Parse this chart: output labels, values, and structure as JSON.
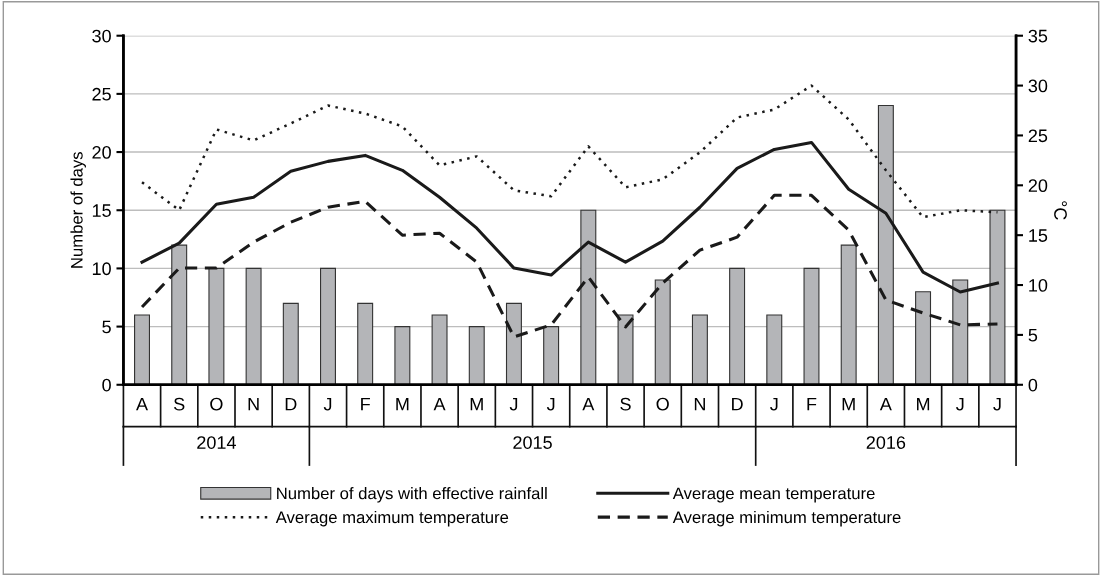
{
  "chart_data": {
    "type": "bar",
    "categories": [
      "A",
      "S",
      "O",
      "N",
      "D",
      "J",
      "F",
      "M",
      "A",
      "M",
      "J",
      "J",
      "A",
      "S",
      "O",
      "N",
      "D",
      "J",
      "F",
      "M",
      "A",
      "M",
      "J",
      "J"
    ],
    "ylabel": "Number of days",
    "y2label": "°C",
    "ylim": [
      0,
      30
    ],
    "yticks": [
      0,
      5,
      10,
      15,
      20,
      25,
      30
    ],
    "y2lim": [
      0,
      35
    ],
    "y2ticks": [
      0,
      5,
      10,
      15,
      20,
      25,
      30,
      35
    ],
    "grid": "y",
    "legend": "bottom",
    "annotations": [
      "2014",
      "2015",
      "2016"
    ],
    "series": [
      {
        "name": "Number of days with effective rainfall",
        "color": "#b4b5b8",
        "values": [
          6,
          12,
          10,
          10,
          7,
          10,
          7,
          5,
          6,
          5,
          7,
          5,
          15,
          6,
          9,
          6,
          10,
          6,
          10,
          12,
          24,
          8,
          9,
          15
        ]
      },
      {
        "name": "Average mean temperature",
        "type": "line",
        "axis": "y2",
        "color": "#1a1a1a",
        "line_style": "solid",
        "values": [
          12.3,
          14.2,
          18.1,
          18.8,
          21.4,
          22.4,
          23.0,
          21.5,
          18.8,
          15.7,
          11.7,
          11.0,
          14.3,
          12.3,
          14.4,
          17.8,
          21.7,
          23.6,
          24.3,
          19.6,
          17.2,
          11.3,
          9.3,
          10.2
        ]
      },
      {
        "name": "Average maximum temperature",
        "type": "line",
        "axis": "y2",
        "color": "#1a1a1a",
        "line_style": "dotted",
        "values": [
          20.3,
          17.5,
          25.6,
          24.5,
          26.2,
          28.0,
          27.2,
          25.9,
          22.0,
          22.9,
          19.5,
          18.9,
          23.9,
          19.8,
          20.6,
          23.3,
          26.8,
          27.6,
          30.0,
          26.6,
          21.5,
          16.8,
          17.5,
          17.3
        ]
      },
      {
        "name": "Average minimum temperature",
        "type": "line",
        "axis": "y2",
        "color": "#1a1a1a",
        "line_style": "dashed",
        "values": [
          7.8,
          11.7,
          11.7,
          14.3,
          16.3,
          17.8,
          18.4,
          15.0,
          15.2,
          12.3,
          4.8,
          6.0,
          10.8,
          5.8,
          10.2,
          13.5,
          14.8,
          19.0,
          19.0,
          15.5,
          8.5,
          7.2,
          6.0,
          6.1
        ]
      }
    ]
  }
}
